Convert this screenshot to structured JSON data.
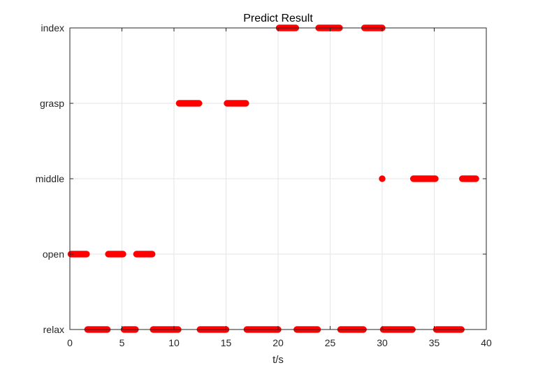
{
  "chart_data": {
    "type": "scatter",
    "title": "Predict Result",
    "xlabel": "t/s",
    "ylabel": "",
    "xlim": [
      0,
      40
    ],
    "x_ticks": [
      0,
      5,
      10,
      15,
      20,
      25,
      30,
      35,
      40
    ],
    "x_tick_labels": [
      "0",
      "5",
      "10",
      "15",
      "20",
      "25",
      "30",
      "35",
      "40"
    ],
    "y_categories": [
      "relax",
      "open",
      "middle",
      "grasp",
      "index"
    ],
    "grid": true,
    "marker_color": "#ff0000",
    "marker_step": 0.1,
    "segments": [
      {
        "class": "relax",
        "x_start": 1.7,
        "x_end": 3.6
      },
      {
        "class": "relax",
        "x_start": 5.2,
        "x_end": 6.3
      },
      {
        "class": "relax",
        "x_start": 8.0,
        "x_end": 10.4
      },
      {
        "class": "relax",
        "x_start": 12.5,
        "x_end": 15.0
      },
      {
        "class": "relax",
        "x_start": 17.0,
        "x_end": 20.0
      },
      {
        "class": "relax",
        "x_start": 21.8,
        "x_end": 23.8
      },
      {
        "class": "relax",
        "x_start": 26.0,
        "x_end": 28.2
      },
      {
        "class": "relax",
        "x_start": 30.1,
        "x_end": 32.9
      },
      {
        "class": "relax",
        "x_start": 35.2,
        "x_end": 37.6
      },
      {
        "class": "open",
        "x_start": 0.1,
        "x_end": 1.6
      },
      {
        "class": "open",
        "x_start": 3.7,
        "x_end": 5.1
      },
      {
        "class": "open",
        "x_start": 6.4,
        "x_end": 7.9
      },
      {
        "class": "grasp",
        "x_start": 10.5,
        "x_end": 12.4
      },
      {
        "class": "grasp",
        "x_start": 15.1,
        "x_end": 16.9
      },
      {
        "class": "index",
        "x_start": 20.1,
        "x_end": 21.7
      },
      {
        "class": "index",
        "x_start": 23.9,
        "x_end": 25.9
      },
      {
        "class": "index",
        "x_start": 28.3,
        "x_end": 30.0
      },
      {
        "class": "middle",
        "x_start": 30.0,
        "x_end": 30.0
      },
      {
        "class": "middle",
        "x_start": 33.0,
        "x_end": 35.1
      },
      {
        "class": "middle",
        "x_start": 37.7,
        "x_end": 39.0
      }
    ]
  }
}
